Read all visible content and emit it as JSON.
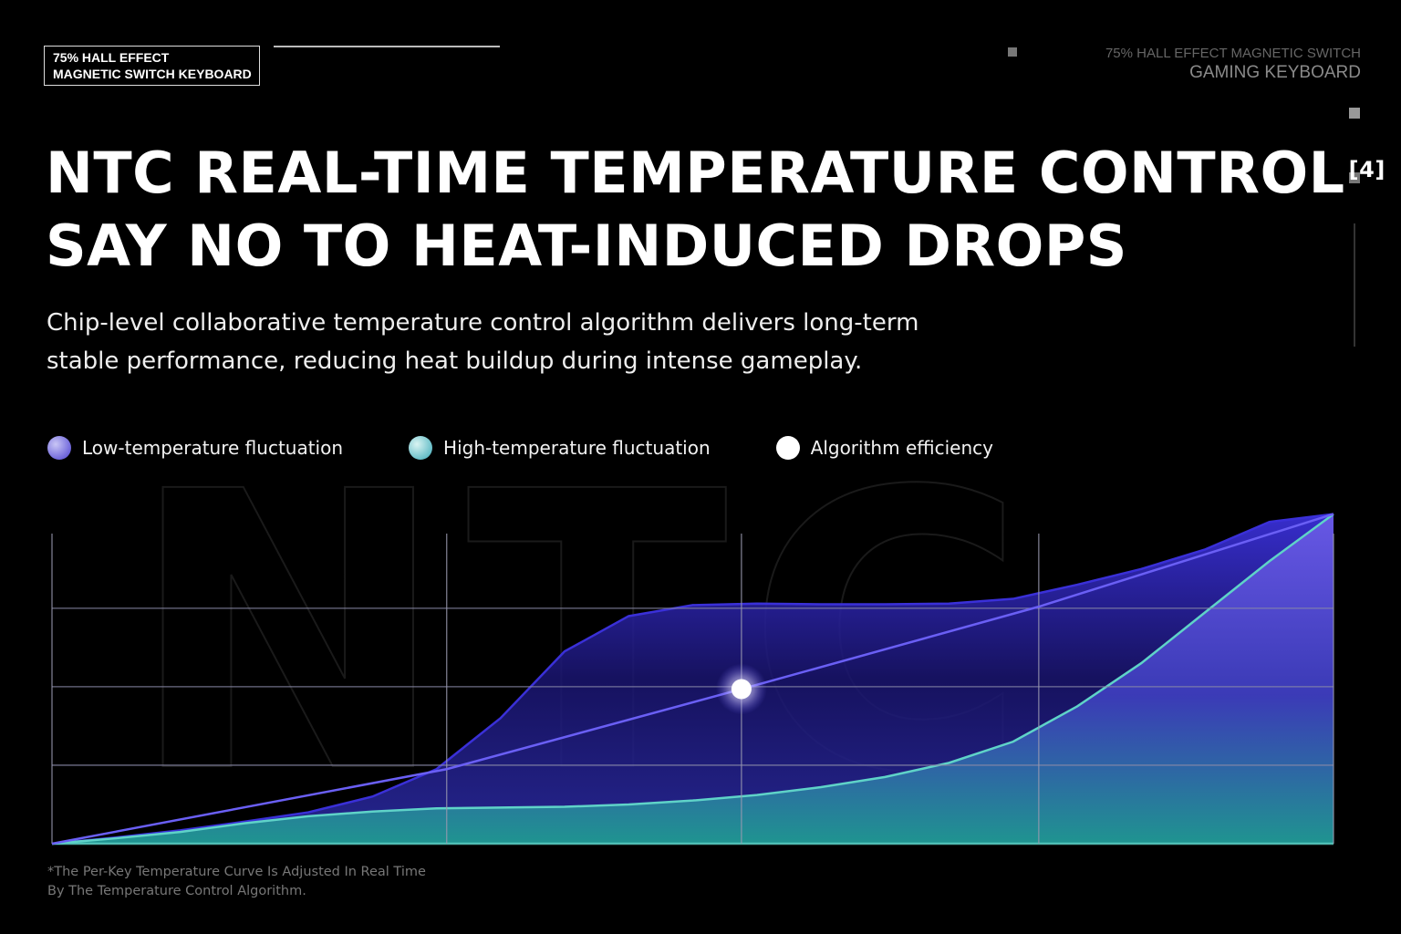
{
  "badge": {
    "lines": [
      "75% HALL EFFECT",
      "MAGNETIC SWITCH KEYBOARD"
    ]
  },
  "top_right": {
    "lines": [
      "75% HALL EFFECT MAGNETIC SWITCH",
      "GAMING KEYBOARD"
    ]
  },
  "title": {
    "lines": [
      "NTC REAL-TIME TEMPERATURE CONTROL",
      "SAY NO TO HEAT-INDUCED DROPS"
    ],
    "note": "[4]"
  },
  "subtitle": {
    "lines": [
      "Chip-level collaborative temperature control algorithm delivers long-term",
      "stable performance, reducing heat buildup during intense gameplay."
    ]
  },
  "watermark": "NTC",
  "footnote": {
    "lines": [
      "*The Per-Key Temperature Curve Is Adjusted In Real Time",
      "By The Temperature Control Algorithm."
    ]
  },
  "chart_data": {
    "type": "area",
    "xlim": [
      0,
      20
    ],
    "ylim": [
      0,
      4.3
    ],
    "xticks": [
      0,
      6.16,
      10.76,
      15.4,
      20
    ],
    "yticks": [
      0,
      1,
      2,
      3
    ],
    "grid": true,
    "series": [
      {
        "name": "Low-temperature fluctuation",
        "color": "#3a30d8",
        "x": [
          0,
          1,
          2,
          3,
          4,
          5,
          6,
          7,
          8,
          9,
          10,
          11,
          12,
          13,
          14,
          15,
          16,
          17,
          18,
          19,
          20
        ],
        "values": [
          0,
          0.08,
          0.17,
          0.28,
          0.4,
          0.6,
          0.95,
          1.6,
          2.45,
          2.9,
          3.04,
          3.06,
          3.05,
          3.05,
          3.06,
          3.12,
          3.3,
          3.5,
          3.75,
          4.1,
          4.2
        ]
      },
      {
        "name": "High-temperature fluctuation",
        "color": "#5fd3c8",
        "x": [
          0,
          1,
          2,
          3,
          4,
          5,
          6,
          7,
          8,
          9,
          10,
          11,
          12,
          13,
          14,
          15,
          16,
          17,
          18,
          19,
          20
        ],
        "values": [
          0,
          0.07,
          0.15,
          0.26,
          0.35,
          0.41,
          0.45,
          0.46,
          0.47,
          0.5,
          0.55,
          0.62,
          0.72,
          0.85,
          1.03,
          1.3,
          1.75,
          2.3,
          2.95,
          3.6,
          4.2
        ]
      },
      {
        "name": "Algorithm efficiency",
        "color": "#6a5ff5",
        "x": [
          0,
          6.16,
          10.76,
          15.4,
          20
        ],
        "values": [
          0,
          0.95,
          1.97,
          3.02,
          4.2
        ],
        "marker": [
          false,
          false,
          true,
          false,
          false
        ]
      }
    ]
  }
}
